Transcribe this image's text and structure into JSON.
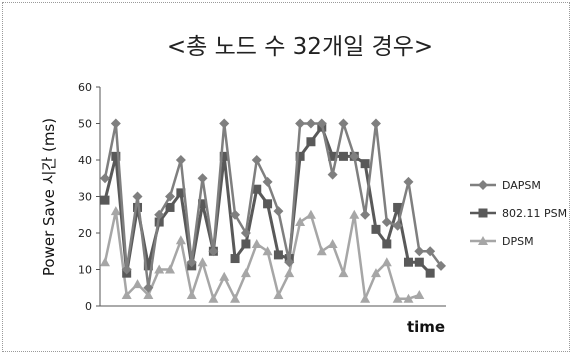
{
  "chart_data": {
    "type": "line",
    "title": "<총 노드 수 32개일 경우>",
    "xlabel": "time",
    "ylabel": "Power Save 시간 (ms)",
    "ylim": [
      0,
      60
    ],
    "yticks": [
      0,
      10,
      20,
      30,
      40,
      50,
      60
    ],
    "grid": false,
    "legend": "right",
    "x": [
      1,
      2,
      3,
      4,
      5,
      6,
      7,
      8,
      9,
      10,
      11,
      12,
      13,
      14,
      15,
      16,
      17,
      18,
      19,
      20,
      21,
      22,
      23,
      24,
      25,
      26,
      27,
      28,
      29,
      30,
      31,
      32,
      33,
      34,
      35,
      36,
      37,
      38,
      39,
      40,
      41,
      42,
      43,
      44,
      45,
      46,
      47,
      48,
      49,
      50
    ],
    "series": [
      {
        "name": "DAPSM",
        "color": "#7f7f7f",
        "marker": "diamond",
        "values": [
          35,
          50,
          10,
          30,
          5,
          25,
          30,
          40,
          12,
          35,
          15,
          50,
          25,
          20,
          40,
          34,
          26,
          12,
          50,
          50,
          50,
          36,
          50,
          41,
          25,
          50,
          23,
          22,
          34,
          15,
          15,
          11,
          null,
          null,
          null,
          null,
          null,
          null,
          null,
          null,
          null,
          null,
          null,
          null,
          null,
          null,
          null,
          null,
          null,
          null
        ]
      },
      {
        "name": "802.11 PSM",
        "color": "#595959",
        "marker": "square",
        "values": [
          29,
          41,
          9,
          27,
          11,
          23,
          27,
          31,
          11,
          28,
          15,
          41,
          13,
          17,
          32,
          28,
          14,
          13,
          41,
          45,
          49,
          41,
          41,
          41,
          39,
          21,
          17,
          27,
          12,
          12,
          9,
          null,
          null,
          null,
          null,
          null,
          null,
          null,
          null,
          null,
          null,
          null,
          null,
          null,
          null,
          null,
          null,
          null,
          null,
          null
        ]
      },
      {
        "name": "DPSM",
        "color": "#a6a6a6",
        "marker": "triangle",
        "values": [
          12,
          26,
          3,
          6,
          3,
          10,
          10,
          18,
          3,
          12,
          2,
          8,
          2,
          9,
          17,
          15,
          3,
          9,
          23,
          25,
          15,
          17,
          9,
          25,
          2,
          9,
          12,
          2,
          2,
          3,
          null,
          null,
          null,
          null,
          null,
          null,
          null,
          null,
          null,
          null,
          null,
          null,
          null,
          null,
          null,
          null,
          null,
          null,
          null,
          null
        ]
      }
    ]
  }
}
